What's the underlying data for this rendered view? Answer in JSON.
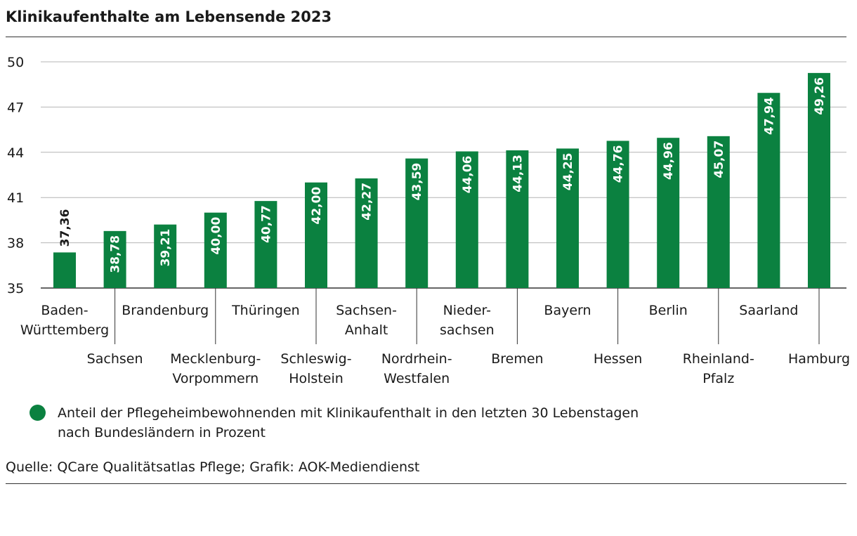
{
  "title": "Klinikaufenthalte am Lebensende 2023",
  "colors": {
    "bar": "#0b8140",
    "grid": "#b4b4b4",
    "axis": "#333333"
  },
  "chart_data": {
    "type": "bar",
    "categories": [
      "Baden-Württemberg",
      "Sachsen",
      "Brandenburg",
      "Mecklenburg-Vorpommern",
      "Thüringen",
      "Schleswig-Holstein",
      "Sachsen-Anhalt",
      "Nordrhein-Westfalen",
      "Niedersachsen",
      "Bremen",
      "Bayern",
      "Hessen",
      "Berlin",
      "Rheinland-Pfalz",
      "Saarland",
      "Hamburg"
    ],
    "category_labels": [
      [
        "Baden-",
        "Württemberg"
      ],
      [
        "Sachsen"
      ],
      [
        "Brandenburg"
      ],
      [
        "Mecklenburg-",
        "Vorpommern"
      ],
      [
        "Thüringen"
      ],
      [
        "Schleswig-",
        "Holstein"
      ],
      [
        "Sachsen-",
        "Anhalt"
      ],
      [
        "Nordrhein-",
        "Westfalen"
      ],
      [
        "Nieder-",
        "sachsen"
      ],
      [
        "Bremen"
      ],
      [
        "Bayern"
      ],
      [
        "Hessen"
      ],
      [
        "Berlin"
      ],
      [
        "Rheinland-",
        "Pfalz"
      ],
      [
        "Saarland"
      ],
      [
        "Hamburg"
      ]
    ],
    "values": [
      37.36,
      38.78,
      39.21,
      40.0,
      40.77,
      42.0,
      42.27,
      43.59,
      44.06,
      44.13,
      44.25,
      44.76,
      44.96,
      45.07,
      47.94,
      49.26
    ],
    "value_labels": [
      "37,36",
      "38,78",
      "39,21",
      "40,00",
      "40,77",
      "42,00",
      "42,27",
      "43,59",
      "44,06",
      "44,13",
      "44,25",
      "44,76",
      "44,96",
      "45,07",
      "47,94",
      "49,26"
    ],
    "yticks": [
      35,
      38,
      41,
      44,
      47,
      50
    ],
    "ylim": [
      35,
      50
    ],
    "grid": true,
    "legend_position": "bottom-left"
  },
  "legend": {
    "line1": "Anteil der Pflegeheimbewohnenden mit Klinikaufenthalt in den letzten 30 Lebenstagen",
    "line2": "nach Bundesländern in Prozent"
  },
  "source": "Quelle: QCare Qualitätsatlas Pflege; Grafik: AOK-Mediendienst"
}
